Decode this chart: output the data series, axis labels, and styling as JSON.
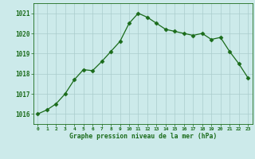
{
  "x": [
    0,
    1,
    2,
    3,
    4,
    5,
    6,
    7,
    8,
    9,
    10,
    11,
    12,
    13,
    14,
    15,
    16,
    17,
    18,
    19,
    20,
    21,
    22,
    23
  ],
  "y": [
    1016.0,
    1016.2,
    1016.5,
    1017.0,
    1017.7,
    1018.2,
    1018.15,
    1018.6,
    1019.1,
    1019.6,
    1020.5,
    1021.0,
    1020.8,
    1020.5,
    1020.2,
    1020.1,
    1020.0,
    1019.9,
    1020.0,
    1019.7,
    1019.8,
    1019.1,
    1018.5,
    1017.8
  ],
  "line_color": "#1a6b1a",
  "marker": "D",
  "marker_size": 2.5,
  "bg_color": "#cceaea",
  "grid_color": "#aacccc",
  "xlabel": "Graphe pression niveau de la mer (hPa)",
  "xlabel_color": "#1a6b1a",
  "tick_color": "#1a6b1a",
  "ylim": [
    1015.5,
    1021.5
  ],
  "yticks": [
    1016,
    1017,
    1018,
    1019,
    1020,
    1021
  ],
  "xlim": [
    -0.5,
    23.5
  ],
  "xticks": [
    0,
    1,
    2,
    3,
    4,
    5,
    6,
    7,
    8,
    9,
    10,
    11,
    12,
    13,
    14,
    15,
    16,
    17,
    18,
    19,
    20,
    21,
    22,
    23
  ]
}
